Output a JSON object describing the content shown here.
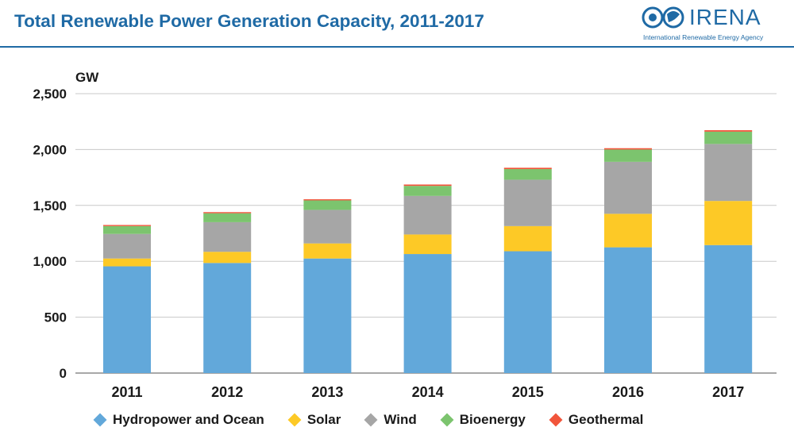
{
  "header": {
    "title": "Total Renewable Power Generation Capacity, 2011-2017"
  },
  "logo": {
    "name": "IRENA",
    "subtitle": "International Renewable Energy Agency"
  },
  "chart_data": {
    "type": "bar",
    "stacked": true,
    "unit_label": "GW",
    "categories": [
      "2011",
      "2012",
      "2013",
      "2014",
      "2015",
      "2016",
      "2017"
    ],
    "ylim": [
      0,
      2500
    ],
    "yticks": [
      0,
      500,
      1000,
      1500,
      2000,
      2500
    ],
    "ytick_labels": [
      "0",
      "500",
      "1,000",
      "1,500",
      "2,000",
      "2,500"
    ],
    "grid": true,
    "legend_position": "bottom",
    "series": [
      {
        "name": "Hydropower and Ocean",
        "color": "#62a8da",
        "values": [
          955,
          985,
          1025,
          1065,
          1090,
          1125,
          1145
        ]
      },
      {
        "name": "Solar",
        "color": "#fdc926",
        "values": [
          70,
          100,
          135,
          175,
          225,
          300,
          395
        ]
      },
      {
        "name": "Wind",
        "color": "#a6a6a6",
        "values": [
          220,
          265,
          300,
          345,
          415,
          465,
          510
        ]
      },
      {
        "name": "Bioenergy",
        "color": "#7cc46e",
        "values": [
          70,
          80,
          85,
          90,
          95,
          110,
          110
        ]
      },
      {
        "name": "Geothermal",
        "color": "#f1553b",
        "values": [
          10,
          10,
          10,
          12,
          12,
          12,
          13
        ]
      }
    ]
  }
}
